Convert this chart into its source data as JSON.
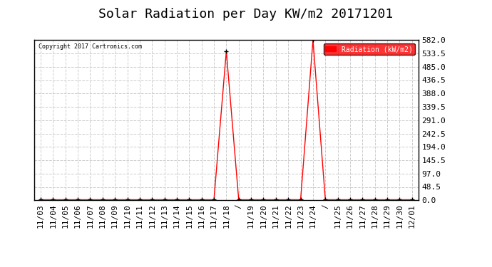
{
  "title": "Solar Radiation per Day KW/m2 20171201",
  "copyright": "Copyright 2017 Cartronics.com",
  "legend_label": "Radiation (kW/m2)",
  "background_color": "#ffffff",
  "plot_bg_color": "#ffffff",
  "line_color": "#ff0000",
  "marker_color": "#000000",
  "x_labels": [
    "11/03",
    "11/04",
    "11/05",
    "11/06",
    "11/07",
    "11/08",
    "11/09",
    "11/10",
    "11/11",
    "11/12",
    "11/13",
    "11/14",
    "11/15",
    "11/16",
    "11/17",
    "11/18",
    "/",
    "11/19",
    "11/20",
    "11/21",
    "11/22",
    "11/23",
    "11/24",
    "/",
    "11/25",
    "11/26",
    "11/27",
    "11/28",
    "11/29",
    "11/30",
    "12/01"
  ],
  "y_values": [
    2.0,
    2.0,
    2.0,
    2.0,
    2.0,
    2.0,
    2.0,
    2.0,
    2.0,
    2.0,
    2.0,
    2.0,
    2.0,
    2.0,
    2.0,
    542.0,
    2.0,
    2.0,
    2.0,
    2.0,
    2.0,
    2.0,
    582.0,
    2.0,
    2.0,
    2.0,
    2.0,
    2.0,
    2.0,
    2.0,
    2.0
  ],
  "ylim": [
    0.0,
    582.0
  ],
  "yticks": [
    0.0,
    48.5,
    97.0,
    145.5,
    194.0,
    242.5,
    291.0,
    339.5,
    388.0,
    436.5,
    485.0,
    533.5,
    582.0
  ],
  "grid_color": "#cccccc",
  "grid_style": "--",
  "title_fontsize": 13,
  "axis_fontsize": 8,
  "legend_bg": "#ff0000",
  "legend_text_color": "#ffffff"
}
